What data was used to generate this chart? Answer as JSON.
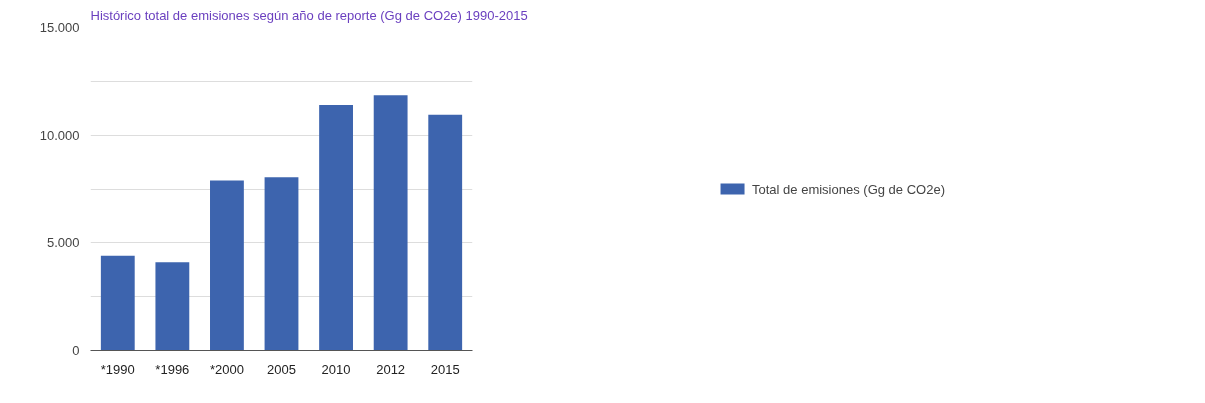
{
  "chart_data": {
    "type": "bar",
    "title": "Histórico total de emisiones según año de reporte (Gg de CO2e) 1990-2015",
    "categories": [
      "*1990",
      "*1996",
      "*2000",
      "2005",
      "2010",
      "2012",
      "2015"
    ],
    "series": [
      {
        "name": "Total de emisiones (Gg de CO2e)",
        "color": "#3d64ae",
        "values": [
          4400,
          4100,
          7900,
          8050,
          11400,
          11850,
          10950
        ]
      }
    ],
    "ylim": [
      0,
      15000
    ],
    "yticks": [
      {
        "value": 0,
        "label": "0"
      },
      {
        "value": 2500,
        "label": null
      },
      {
        "value": 5000,
        "label": "5.000"
      },
      {
        "value": 7500,
        "label": null
      },
      {
        "value": 10000,
        "label": "10.000"
      },
      {
        "value": 12500,
        "label": null
      },
      {
        "value": 15000,
        "label": "15.000"
      }
    ],
    "grid": "y",
    "legend": "right"
  }
}
